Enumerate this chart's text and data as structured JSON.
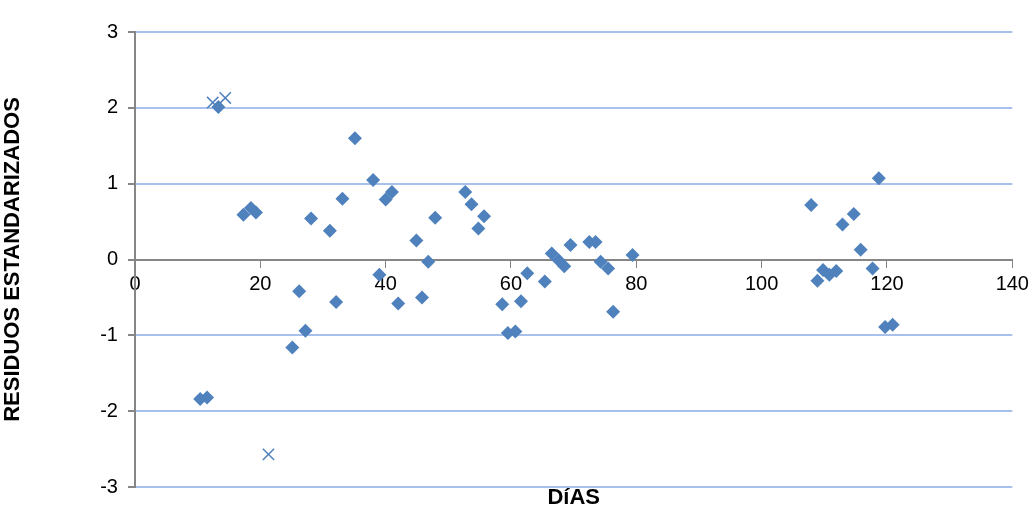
{
  "chart_data": {
    "type": "scatter",
    "xlabel": "DíAS",
    "ylabel": "RESIDUOS ESTANDARIZADOS",
    "xlim": [
      0,
      140
    ],
    "xticks": [
      0,
      20,
      40,
      60,
      80,
      100,
      120,
      140
    ],
    "ylim": [
      -3,
      3
    ],
    "yticks": [
      -3,
      -2,
      -1,
      0,
      1,
      2,
      3
    ],
    "grid": "y",
    "legend": false,
    "series": [
      {
        "color": "#4f81bd",
        "marker": "diamond",
        "x": [
          10.4,
          11.5,
          13.3,
          17.3,
          18.5,
          19.3,
          25.1,
          26.2,
          27.2,
          28.1,
          31.1,
          32.1,
          33.1,
          35.1,
          38,
          39,
          40,
          41,
          42,
          44.9,
          45.8,
          46.8,
          47.9,
          52.7,
          53.7,
          54.8,
          55.7,
          58.6,
          59.5,
          60.7,
          61.6,
          62.6,
          65.4,
          66.5,
          67.6,
          68.5,
          69.5,
          72.5,
          73.5,
          74.3,
          75.5,
          76.3,
          79.4,
          107.9,
          108.9,
          109.8,
          110.8,
          111.9,
          112.9,
          114.7,
          115.8,
          117.7,
          118.7,
          119.7,
          120.9
        ],
        "values": [
          -1.84,
          -1.82,
          2.01,
          0.59,
          0.68,
          0.62,
          -1.16,
          -0.42,
          -0.94,
          0.54,
          0.38,
          -0.56,
          0.8,
          1.6,
          1.05,
          -0.2,
          0.79,
          0.89,
          -0.58,
          0.25,
          -0.5,
          -0.03,
          0.55,
          0.89,
          0.73,
          0.41,
          0.57,
          -0.59,
          -0.97,
          -0.95,
          -0.55,
          -0.18,
          -0.29,
          0.08,
          -0.01,
          -0.09,
          0.19,
          0.23,
          0.23,
          -0.03,
          -0.12,
          -0.69,
          0.06,
          0.72,
          -0.28,
          -0.14,
          -0.2,
          -0.15,
          0.46,
          0.6,
          0.13,
          -0.12,
          1.07,
          -0.89,
          -0.86
        ]
      },
      {
        "color": "#4f81bd",
        "marker": "cross",
        "x": [
          12.4,
          14.4,
          21.3
        ],
        "values": [
          2.07,
          2.13,
          -2.57
        ]
      }
    ]
  }
}
